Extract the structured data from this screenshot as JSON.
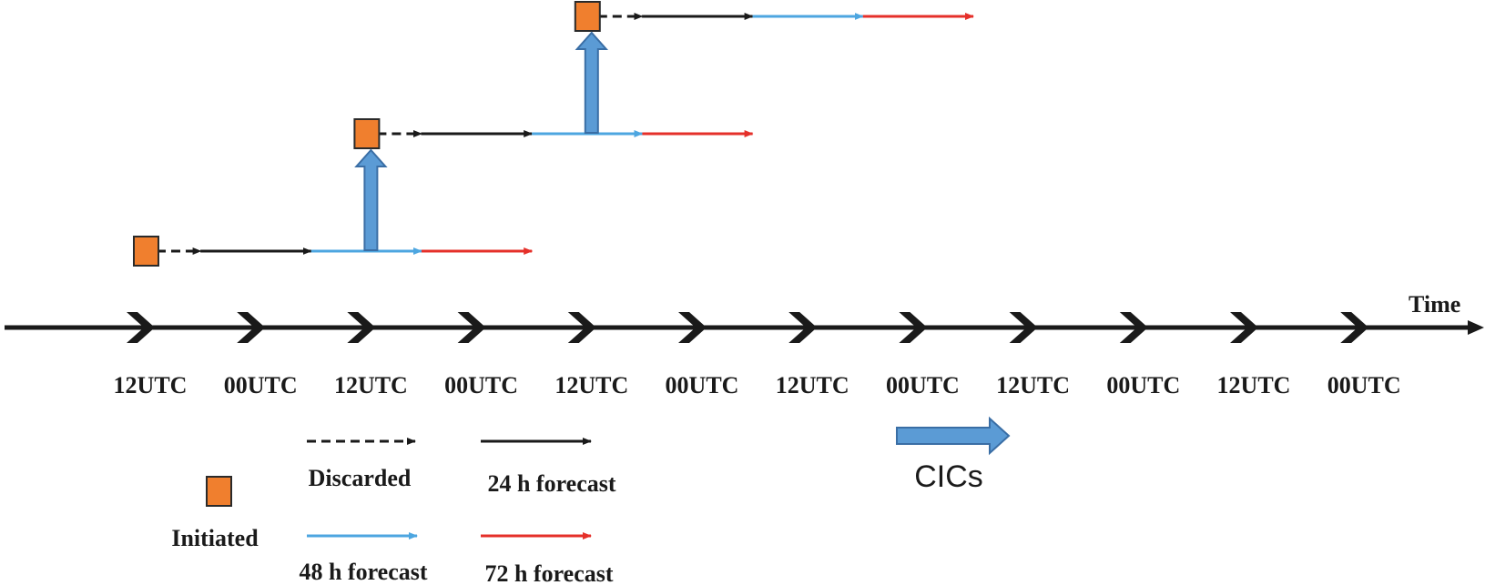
{
  "colors": {
    "axis": "#1a1a1a",
    "discarded": "#1a1a1a",
    "forecast_24h": "#1a1a1a",
    "forecast_48h": "#4da6e0",
    "forecast_72h": "#e5302a",
    "initiated_fill": "#f07f2e",
    "initiated_stroke": "#2a2a2a",
    "cics_fill": "#5b9bd5",
    "cics_stroke": "#3a6ea5"
  },
  "axis": {
    "title": "Time",
    "ticks": [
      "12UTC",
      "00UTC",
      "12UTC",
      "00UTC",
      "12UTC",
      "00UTC",
      "12UTC",
      "00UTC",
      "12UTC",
      "00UTC",
      "12UTC",
      "00UTC"
    ]
  },
  "cycles": [
    {
      "start_tick": 0,
      "discarded_ticks": 1,
      "f24_ticks": 2,
      "f48_ticks": 2,
      "f72_ticks": 2,
      "marker": "Initiated"
    },
    {
      "start_tick": 2,
      "discarded_ticks": 1,
      "f24_ticks": 2,
      "f48_ticks": 2,
      "f72_ticks": 2,
      "marker": "Initiated"
    },
    {
      "start_tick": 4,
      "discarded_ticks": 1,
      "f24_ticks": 2,
      "f48_ticks": 2,
      "f72_ticks": 2,
      "marker": "Initiated"
    }
  ],
  "cics_arrows": [
    {
      "at_tick": 2,
      "from_cycle": 0,
      "to_cycle": 1
    },
    {
      "at_tick": 4,
      "from_cycle": 1,
      "to_cycle": 2
    }
  ],
  "legend": {
    "initiated": "Initiated",
    "discarded": "Discarded",
    "forecast_24h": "24 h forecast",
    "forecast_48h": "48 h forecast",
    "forecast_72h": "72 h forecast",
    "cics": "CICs"
  }
}
